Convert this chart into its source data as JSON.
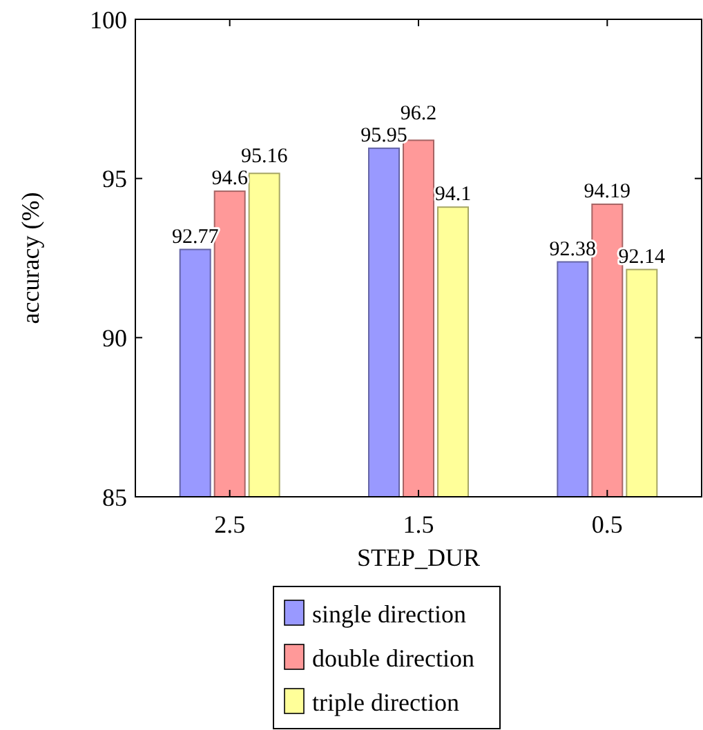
{
  "chart_data": {
    "type": "bar",
    "xlabel": "STEP_DUR",
    "ylabel": "accuracy (%)",
    "categories": [
      "2.5",
      "1.5",
      "0.5"
    ],
    "series": [
      {
        "name": "single direction",
        "color": "#9999ff",
        "values": [
          92.77,
          95.95,
          92.38
        ]
      },
      {
        "name": "double direction",
        "color": "#ff9999",
        "values": [
          94.6,
          96.2,
          94.19
        ]
      },
      {
        "name": "triple direction",
        "color": "#ffff99",
        "values": [
          95.16,
          94.1,
          92.14
        ]
      }
    ],
    "ylim": [
      85,
      100
    ],
    "yticks": [
      85,
      90,
      95,
      100
    ],
    "data_labels": true,
    "legend": "bottom",
    "grid": false
  }
}
